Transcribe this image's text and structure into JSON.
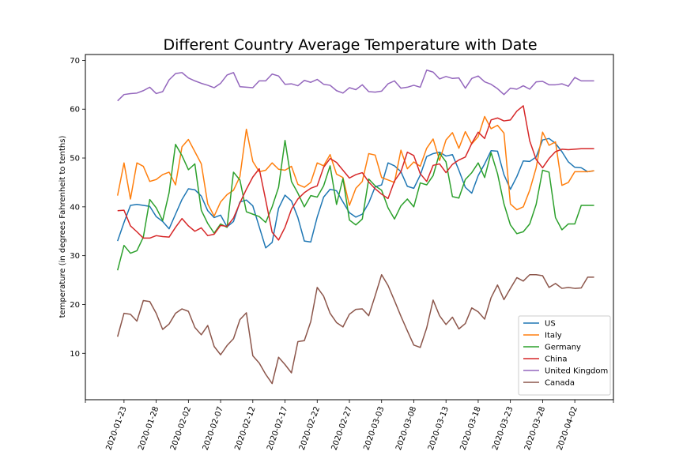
{
  "chart_data": {
    "type": "line",
    "title": "Different Country Average Temperature with Date",
    "xlabel": "",
    "ylabel": "temperature (in degrees Fahrenheit to tenths)",
    "x_start": "2020-01-22",
    "x_end": "2020-04-03",
    "xlim": [
      "2020-01-17",
      "2020-04-08"
    ],
    "ylim": [
      0.5,
      71.2
    ],
    "yticks": [
      10,
      20,
      30,
      40,
      50,
      60,
      70
    ],
    "xticks": [
      "2020-01-23",
      "2020-01-28",
      "2020-02-02",
      "2020-02-07",
      "2020-02-12",
      "2020-02-17",
      "2020-02-22",
      "2020-02-27",
      "2020-03-03",
      "2020-03-08",
      "2020-03-13",
      "2020-03-18",
      "2020-03-23",
      "2020-03-28",
      "2020-04-02"
    ],
    "legend_position": "lower-right",
    "grid": false,
    "series": [
      {
        "name": "US",
        "color": "#1f77b4",
        "values": [
          33.0,
          36.8,
          40.3,
          40.5,
          40.3,
          40.1,
          38.0,
          37.0,
          35.5,
          38.5,
          41.5,
          43.7,
          43.5,
          42.2,
          39.2,
          37.8,
          38.3,
          35.9,
          37.0,
          41.0,
          41.4,
          40.2,
          35.9,
          31.6,
          32.7,
          39.7,
          42.4,
          41.2,
          37.8,
          33.0,
          32.8,
          37.9,
          42.0,
          43.6,
          43.3,
          41.0,
          38.8,
          37.9,
          38.5,
          40.8,
          44.1,
          44.5,
          49.0,
          48.4,
          47.2,
          44.2,
          43.8,
          46.5,
          50.3,
          50.9,
          51.2,
          50.4,
          50.7,
          47.5,
          44.0,
          42.8,
          46.4,
          48.8,
          51.5,
          51.4,
          46.6,
          43.6,
          46.2,
          49.4,
          49.3,
          50.2,
          53.7,
          54.0,
          53.0,
          51.3,
          49.2,
          48.1,
          48.0,
          47.2,
          47.4
        ]
      },
      {
        "name": "Italy",
        "color": "#ff7f0e",
        "values": [
          42.3,
          49.0,
          41.6,
          49.0,
          48.3,
          45.2,
          45.6,
          46.6,
          47.1,
          44.5,
          52.3,
          53.8,
          51.3,
          48.8,
          40.6,
          38.1,
          41.0,
          42.5,
          43.4,
          46.2,
          55.9,
          49.3,
          47.2,
          47.5,
          49.0,
          47.7,
          47.5,
          48.3,
          44.6,
          44.0,
          45.0,
          49.0,
          48.4,
          50.7,
          46.7,
          46.0,
          40.3,
          43.8,
          45.2,
          50.9,
          50.6,
          46.0,
          45.5,
          45.0,
          51.6,
          47.8,
          49.2,
          48.3,
          52.0,
          53.9,
          49.5,
          53.7,
          55.2,
          52.0,
          55.4,
          52.9,
          54.4,
          58.5,
          56.0,
          56.7,
          55.1,
          40.6,
          39.4,
          40.0,
          43.4,
          48.0,
          55.3,
          52.6,
          53.3,
          44.4,
          45.0,
          47.2,
          47.2,
          47.2,
          47.4
        ]
      },
      {
        "name": "Germany",
        "color": "#2ca02c",
        "values": [
          27.0,
          32.1,
          30.5,
          31.0,
          33.8,
          41.5,
          39.8,
          37.2,
          42.9,
          52.8,
          50.5,
          47.6,
          48.8,
          39.3,
          36.6,
          34.6,
          36.5,
          35.8,
          47.1,
          45.5,
          39.0,
          38.5,
          38.0,
          36.8,
          40.0,
          44.0,
          53.6,
          45.2,
          42.8,
          40.0,
          42.3,
          42.0,
          44.3,
          48.4,
          40.5,
          45.8,
          37.3,
          36.3,
          37.5,
          45.7,
          44.3,
          43.4,
          39.8,
          37.5,
          40.2,
          41.6,
          40.0,
          44.9,
          44.5,
          46.4,
          51.0,
          49.2,
          42.1,
          41.8,
          45.6,
          47.0,
          49.0,
          46.0,
          51.1,
          46.8,
          40.6,
          36.3,
          34.5,
          34.9,
          36.5,
          40.5,
          47.5,
          47.1,
          37.8,
          35.3,
          36.5,
          36.5,
          40.3,
          40.3,
          40.3
        ]
      },
      {
        "name": "China",
        "color": "#d62728",
        "values": [
          39.2,
          39.3,
          36.1,
          34.9,
          33.6,
          33.6,
          34.1,
          33.9,
          33.8,
          35.8,
          37.6,
          36.1,
          35.0,
          35.7,
          34.1,
          34.4,
          36.2,
          36.0,
          37.7,
          40.8,
          43.6,
          46.1,
          47.8,
          41.4,
          34.8,
          33.2,
          35.8,
          39.5,
          41.6,
          42.9,
          43.8,
          44.3,
          48.1,
          49.9,
          49.1,
          47.5,
          45.9,
          46.6,
          47.0,
          45.1,
          43.7,
          42.6,
          41.7,
          45.3,
          47.2,
          51.2,
          50.5,
          46.8,
          45.2,
          48.5,
          48.8,
          47.0,
          48.7,
          49.6,
          50.2,
          53.0,
          55.3,
          54.0,
          57.8,
          58.2,
          57.6,
          57.8,
          59.6,
          60.7,
          53.5,
          49.7,
          48.0,
          49.9,
          51.3,
          51.8,
          51.7,
          51.8,
          51.9,
          51.9,
          51.9
        ]
      },
      {
        "name": "United Kingdom",
        "color": "#9467bd",
        "values": [
          61.7,
          63.0,
          63.2,
          63.3,
          63.8,
          64.5,
          63.2,
          63.6,
          66.0,
          67.3,
          67.5,
          66.4,
          65.8,
          65.3,
          64.9,
          64.4,
          65.3,
          67.0,
          67.5,
          64.6,
          64.5,
          64.4,
          65.8,
          65.8,
          67.2,
          66.8,
          65.1,
          65.2,
          64.8,
          65.9,
          65.5,
          66.1,
          65.1,
          64.9,
          63.8,
          63.3,
          64.4,
          64.0,
          65.0,
          63.6,
          63.5,
          63.7,
          65.2,
          65.8,
          64.3,
          64.5,
          64.9,
          64.5,
          68.0,
          67.6,
          66.2,
          66.7,
          66.3,
          66.4,
          64.3,
          66.3,
          66.8,
          65.6,
          65.1,
          64.2,
          63.0,
          64.3,
          64.1,
          64.8,
          64.1,
          65.6,
          65.7,
          65.0,
          65.0,
          65.2,
          64.7,
          66.5,
          65.8,
          65.8,
          65.8
        ]
      },
      {
        "name": "Canada",
        "color": "#8c564b",
        "values": [
          13.4,
          18.2,
          18.0,
          16.6,
          20.8,
          20.6,
          18.2,
          14.9,
          16.0,
          18.2,
          19.1,
          18.6,
          15.3,
          13.8,
          15.7,
          11.4,
          9.7,
          11.6,
          13.0,
          16.9,
          18.3,
          9.5,
          8.0,
          5.7,
          3.8,
          9.2,
          7.7,
          6.0,
          12.4,
          12.6,
          16.5,
          23.5,
          21.7,
          18.2,
          16.3,
          15.4,
          18.0,
          19.0,
          19.1,
          17.7,
          21.8,
          26.1,
          23.9,
          20.8,
          17.6,
          14.6,
          11.7,
          11.2,
          15.2,
          20.9,
          17.7,
          15.9,
          17.4,
          15.0,
          16.1,
          19.3,
          18.5,
          17.0,
          21.4,
          24.0,
          21.0,
          23.3,
          25.5,
          24.8,
          26.1,
          26.1,
          25.9,
          23.5,
          24.3,
          23.3,
          23.5,
          23.3,
          23.4,
          25.6,
          25.6
        ]
      }
    ]
  }
}
